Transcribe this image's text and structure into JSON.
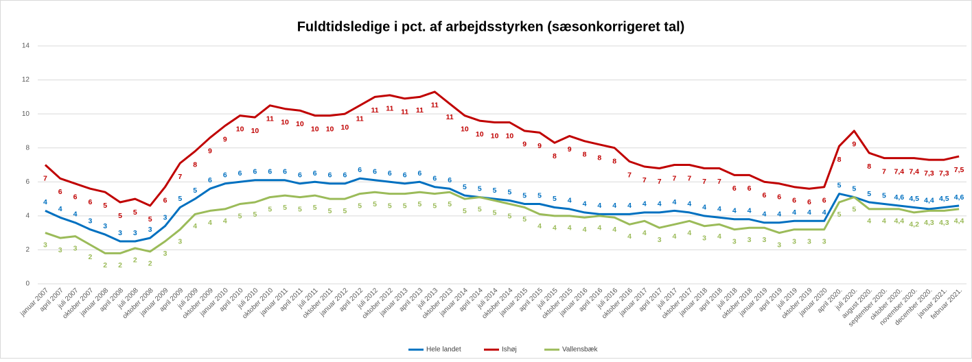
{
  "chart_data": {
    "type": "line",
    "title": "Fuldtidsledige i pct. af arbejdsstyrken (sæsonkorrigeret tal)",
    "categories": [
      "januar 2007",
      "april 2007",
      "juli 2007",
      "oktober 2007",
      "januar 2008",
      "april 2008",
      "juli 2008",
      "oktober 2008",
      "januar 2009",
      "april 2009",
      "juli 2009",
      "oktober 2009",
      "januar 2010",
      "april 2010",
      "juli 2010",
      "oktober 2010",
      "januar 2011",
      "april 2011",
      "juli 2011",
      "oktober 2011",
      "januar 2012",
      "april 2012",
      "juli 2012",
      "oktober 2012",
      "januar 2013",
      "april 2013",
      "juli 2013",
      "oktober 2013",
      "januar 2014",
      "april 2014",
      "juli 2014",
      "oktober 2014",
      "januar 2015",
      "april 2015",
      "juli 2015",
      "oktober 2015",
      "januar 2016",
      "april 2016",
      "juli 2016",
      "oktober 2016",
      "januar 2017",
      "april 2017",
      "juli 2017",
      "oktober 2017",
      "januar 2018",
      "april 2018",
      "juli 2018",
      "oktober 2018",
      "januar 2019",
      "april 2019",
      "juli 2019",
      "oktober 2019",
      "januar 2020",
      "april 2020.",
      "juli 2020.",
      "august 2020.",
      "september 2020.",
      "oktober 2020.",
      "november 2020.",
      "december 2020.",
      "januar 2021.",
      "februar 2021."
    ],
    "series": [
      {
        "name": "Hele landet",
        "color": "#0070c0",
        "values": [
          4.3,
          3.9,
          3.6,
          3.2,
          2.9,
          2.5,
          2.5,
          2.7,
          3.4,
          4.5,
          5.0,
          5.6,
          5.9,
          6.0,
          6.1,
          6.1,
          6.1,
          5.9,
          6.0,
          5.9,
          5.9,
          6.2,
          6.1,
          6.0,
          5.9,
          6.0,
          5.7,
          5.6,
          5.2,
          5.1,
          5.0,
          4.9,
          4.7,
          4.7,
          4.5,
          4.4,
          4.2,
          4.1,
          4.1,
          4.1,
          4.2,
          4.2,
          4.3,
          4.2,
          4.0,
          3.9,
          3.8,
          3.8,
          3.6,
          3.6,
          3.7,
          3.7,
          3.7,
          5.3,
          5.1,
          4.8,
          4.7,
          4.6,
          4.5,
          4.4,
          4.5,
          4.6
        ],
        "value_labels": [
          "4",
          "4",
          "4",
          "3",
          "3",
          "3",
          "3",
          "3",
          "3",
          "5",
          "5",
          "6",
          "6",
          "6",
          "6",
          "6",
          "6",
          "6",
          "6",
          "6",
          "6",
          "6",
          "6",
          "6",
          "6",
          "6",
          "6",
          "6",
          "5",
          "5",
          "5",
          "5",
          "5",
          "5",
          "5",
          "4",
          "4",
          "4",
          "4",
          "4",
          "4",
          "4",
          "4",
          "4",
          "4",
          "4",
          "4",
          "4",
          "4",
          "4",
          "4",
          "4",
          "4",
          "5",
          "5",
          "5",
          "5",
          "4,6",
          "4,5",
          "4,4",
          "4,5",
          "4,6"
        ]
      },
      {
        "name": "Ishøj",
        "color": "#c00000",
        "values": [
          7.0,
          6.2,
          5.9,
          5.6,
          5.4,
          4.8,
          5.0,
          4.6,
          5.7,
          7.1,
          7.8,
          8.6,
          9.3,
          9.9,
          9.8,
          10.5,
          10.3,
          10.2,
          9.9,
          9.9,
          10.0,
          10.5,
          11.0,
          11.1,
          10.9,
          11.0,
          11.3,
          10.6,
          9.9,
          9.6,
          9.5,
          9.5,
          9.0,
          8.9,
          8.3,
          8.7,
          8.4,
          8.2,
          8.0,
          7.2,
          6.9,
          6.8,
          7.0,
          7.0,
          6.8,
          6.8,
          6.4,
          6.4,
          6.0,
          5.9,
          5.7,
          5.6,
          5.7,
          8.1,
          9.0,
          7.7,
          7.4,
          7.4,
          7.4,
          7.3,
          7.3,
          7.5
        ],
        "value_labels": [
          "7",
          "6",
          "6",
          "6",
          "5",
          "5",
          "5",
          "5",
          "6",
          "7",
          "8",
          "9",
          "9",
          "10",
          "10",
          "11",
          "10",
          "10",
          "10",
          "10",
          "10",
          "11",
          "11",
          "11",
          "11",
          "11",
          "11",
          "11",
          "10",
          "10",
          "10",
          "10",
          "9",
          "9",
          "8",
          "9",
          "8",
          "8",
          "8",
          "7",
          "7",
          "7",
          "7",
          "7",
          "7",
          "7",
          "6",
          "6",
          "6",
          "6",
          "6",
          "6",
          "6",
          "8",
          "9",
          "8",
          "7",
          "7,4",
          "7,4",
          "7,3",
          "7,3",
          "7,5"
        ]
      },
      {
        "name": "Vallensbæk",
        "color": "#9bbb59",
        "values": [
          3.0,
          2.7,
          2.8,
          2.3,
          1.8,
          1.8,
          2.1,
          1.9,
          2.5,
          3.2,
          4.1,
          4.3,
          4.4,
          4.7,
          4.8,
          5.1,
          5.2,
          5.1,
          5.2,
          5.0,
          5.0,
          5.3,
          5.4,
          5.3,
          5.3,
          5.4,
          5.3,
          5.4,
          5.0,
          5.1,
          4.9,
          4.7,
          4.5,
          4.1,
          4.0,
          4.0,
          3.9,
          4.0,
          3.9,
          3.5,
          3.7,
          3.3,
          3.5,
          3.7,
          3.4,
          3.5,
          3.2,
          3.3,
          3.3,
          3.0,
          3.2,
          3.2,
          3.2,
          4.8,
          5.1,
          4.4,
          4.4,
          4.4,
          4.2,
          4.3,
          4.3,
          4.4
        ],
        "value_labels": [
          "3",
          "3",
          "3",
          "2",
          "2",
          "2",
          "2",
          "2",
          "3",
          "3",
          "4",
          "4",
          "4",
          "5",
          "5",
          "5",
          "5",
          "5",
          "5",
          "5",
          "5",
          "5",
          "5",
          "5",
          "5",
          "5",
          "5",
          "5",
          "5",
          "5",
          "5",
          "5",
          "5",
          "4",
          "4",
          "4",
          "4",
          "4",
          "4",
          "4",
          "4",
          "3",
          "4",
          "4",
          "3",
          "4",
          "3",
          "3",
          "3",
          "3",
          "3",
          "3",
          "3",
          "5",
          "5",
          "4",
          "4",
          "4,4",
          "4,2",
          "4,3",
          "4,3",
          "4,4"
        ]
      }
    ],
    "ylim": [
      0,
      14
    ],
    "yticks": [
      0,
      2,
      4,
      6,
      8,
      10,
      12,
      14
    ],
    "grid": true,
    "legend": "bottom"
  }
}
